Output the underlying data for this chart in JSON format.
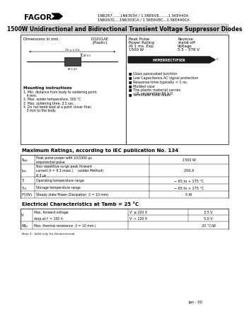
{
  "bg_color": "#ffffff",
  "header_pn1": "1N6267.......1N6303A / 1.5KE6V8........1.5KE440A",
  "header_pn2": "1N6267C....1N6303CA / 1.5KE6V8C...1.5KE440CA",
  "title": "1500W Unidirectional and Bidirectional Transient Voltage Suppressor Diodes",
  "mounting_title": "Mounting instructions",
  "mounting_lines": [
    "1. Min. distance from body to soldering point,",
    "   4 mm.",
    "2. Max. solder temperature, 300 °C",
    "3. Max. soldering time, 3.5 sec.",
    "4. Do not bend lead at a point closer than",
    "   3 mm to the body"
  ],
  "features": [
    "Glass passivated junction",
    "Low Capacitance AC signal protection",
    "Response time typically < 1 ns.",
    "Molded case",
    "The plastic material carries\n   UL recognition 94 V-0",
    "Terminals: Axial leads"
  ],
  "max_ratings_title": "Maximum Ratings, according to IEC publication No. 134",
  "max_ratings": [
    [
      "Pₚₚₖ",
      "Peak pulse power with 10/1000 μs\nexponential pulse",
      "1500 W"
    ],
    [
      "Iₚₚₖ",
      "Non repetitive surge peak forward\ncurrent (t = 8.3 msec.)    (solder Method)\n8.3 μs",
      "200 A"
    ],
    [
      "Tⱼ",
      "Operating temperature range",
      "− 65 to + 175 °C"
    ],
    [
      "Tₛₜₗ",
      "Storage temperature range",
      "− 65 to + 175 °C"
    ],
    [
      "Pᵈ(AV)",
      "Steady state Power Dissipation  (l = 10 mm)",
      "5 W"
    ]
  ],
  "elec_title": "Electrical Characteristics at Tamb = 25 °C",
  "elec_rows": [
    [
      "Vᶠ",
      "Max. forward voltage    Vᶠ ≤ 220 V",
      "3.5 V"
    ],
    [
      "",
      "drop at lᶠ = 100 A    Vᶠ > 220 V",
      "5.0 V"
    ],
    [
      "Rθⱼₐ",
      "Max. thermal resistance  (l = 10 mm.)",
      "20 °C/W"
    ]
  ],
  "note": "Note 1 : Valid only for Unidirectional.",
  "footer": "Jan - 00"
}
